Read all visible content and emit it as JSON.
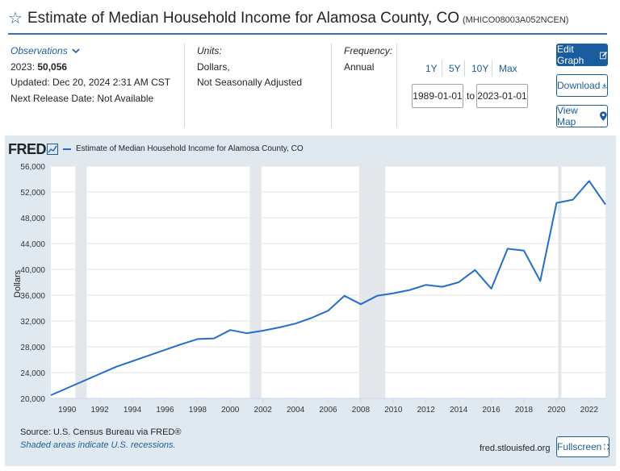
{
  "header": {
    "title": "Estimate of Median Household Income for Alamosa County, CO",
    "series_id": "(MHICO08003A052NCEN)"
  },
  "observations": {
    "heading": "Observations",
    "latest_prefix": "2023:",
    "latest_value": "50,056",
    "updated": "Updated: Dec 20, 2024 2:31 AM CST",
    "next_release": "Next Release Date: Not Available"
  },
  "units": {
    "heading": "Units:",
    "line1": "Dollars,",
    "line2": "Not Seasonally Adjusted"
  },
  "frequency": {
    "heading": "Frequency:",
    "value": "Annual"
  },
  "ranges": [
    "1Y",
    "5Y",
    "10Y",
    "Max"
  ],
  "date_range": {
    "start": "1989-01-01",
    "to_label": "to",
    "end": "2023-01-01"
  },
  "buttons": {
    "edit": "Edit Graph",
    "download": "Download",
    "view_map": "View Map",
    "fullscreen": "Fullscreen"
  },
  "colors": {
    "accent": "#1a5d9e",
    "series_line": "#1f6fd0",
    "panel_bg": "#e1e9f0",
    "recession": "#e3e6ea"
  },
  "chart_data": {
    "type": "line",
    "title": "Estimate of Median Household Income for Alamosa County, CO",
    "brand": "FRED",
    "legend": "Estimate of Median Household Income for Alamosa County, CO",
    "ylabel": "Dollars",
    "xlabel": "",
    "ylim": [
      20000,
      56000
    ],
    "xlim": [
      1989,
      2023
    ],
    "y_ticks": [
      20000,
      24000,
      28000,
      32000,
      36000,
      40000,
      44000,
      48000,
      52000,
      56000
    ],
    "y_tick_labels": [
      "20,000",
      "24,000",
      "28,000",
      "32,000",
      "36,000",
      "40,000",
      "44,000",
      "48,000",
      "52,000",
      "56,000"
    ],
    "x_ticks": [
      1990,
      1992,
      1994,
      1996,
      1998,
      2000,
      2002,
      2004,
      2006,
      2008,
      2010,
      2012,
      2014,
      2016,
      2018,
      2020,
      2022
    ],
    "x_tick_labels": [
      "1990",
      "1992",
      "1994",
      "1996",
      "1998",
      "2000",
      "2002",
      "2004",
      "2006",
      "2008",
      "2010",
      "2012",
      "2014",
      "2016",
      "2018",
      "2020",
      "2022"
    ],
    "recessions": [
      [
        1990.5,
        1991.2
      ],
      [
        2001.2,
        2001.9
      ],
      [
        2007.9,
        2009.5
      ],
      [
        2020.1,
        2020.3
      ]
    ],
    "series": [
      {
        "name": "Estimate of Median Household Income for Alamosa County, CO",
        "x": [
          1989,
          1993,
          1997,
          1998,
          1999,
          2000,
          2001,
          2002,
          2003,
          2004,
          2005,
          2006,
          2007,
          2008,
          2009,
          2010,
          2011,
          2012,
          2013,
          2014,
          2015,
          2016,
          2017,
          2018,
          2019,
          2020,
          2021,
          2022,
          2023
        ],
        "values": [
          20500,
          24900,
          28400,
          29200,
          29300,
          30600,
          30100,
          30500,
          31000,
          31600,
          32500,
          33600,
          35900,
          34600,
          35900,
          36300,
          36800,
          37600,
          37300,
          38000,
          39900,
          37000,
          43200,
          42900,
          38200,
          50300,
          50800,
          53700,
          50056
        ]
      }
    ],
    "source": "Source: U.S. Census Bureau via FRED®",
    "note": "Shaded areas indicate U.S. recessions.",
    "site": "fred.stlouisfed.org"
  }
}
